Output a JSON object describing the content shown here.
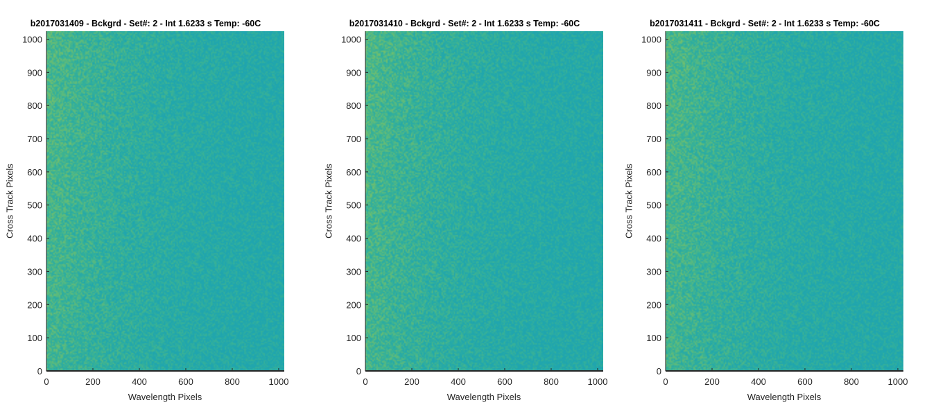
{
  "figure": {
    "colormap": [
      "#1fa3b0",
      "#21a7ad",
      "#3bb394",
      "#76c06a"
    ]
  },
  "chart_data": [
    {
      "type": "heatmap",
      "title": "b2017031409 - Bckgrd - Set#: 2 - Int 1.6233 s Temp: -60C",
      "xlabel": "Wavelength Pixels",
      "ylabel": "Cross Track Pixels",
      "xlim": [
        0,
        1024
      ],
      "ylim": [
        0,
        1024
      ],
      "xticks": [
        0,
        200,
        400,
        600,
        800,
        1000
      ],
      "yticks": [
        0,
        100,
        200,
        300,
        400,
        500,
        600,
        700,
        800,
        900,
        1000
      ],
      "values": "noisy detector background, nearly uniform teal with slightly brighter green-yellow noise toward low wavelength pixels",
      "grid": false
    },
    {
      "type": "heatmap",
      "title": "b2017031410 - Bckgrd - Set#: 2 - Int 1.6233 s Temp: -60C",
      "xlabel": "Wavelength Pixels",
      "ylabel": "Cross Track Pixels",
      "xlim": [
        0,
        1024
      ],
      "ylim": [
        0,
        1024
      ],
      "xticks": [
        0,
        200,
        400,
        600,
        800,
        1000
      ],
      "yticks": [
        0,
        100,
        200,
        300,
        400,
        500,
        600,
        700,
        800,
        900,
        1000
      ],
      "values": "noisy detector background, nearly uniform teal with slightly brighter green-yellow noise toward low wavelength pixels",
      "grid": false
    },
    {
      "type": "heatmap",
      "title": "b2017031411 - Bckgrd - Set#: 2 - Int 1.6233 s Temp: -60C",
      "xlabel": "Wavelength Pixels",
      "ylabel": "Cross Track Pixels",
      "xlim": [
        0,
        1024
      ],
      "ylim": [
        0,
        1024
      ],
      "xticks": [
        0,
        200,
        400,
        600,
        800,
        1000
      ],
      "yticks": [
        0,
        100,
        200,
        300,
        400,
        500,
        600,
        700,
        800,
        900,
        1000
      ],
      "values": "noisy detector background, nearly uniform teal with slightly brighter green-yellow noise toward low wavelength pixels",
      "grid": false
    }
  ]
}
